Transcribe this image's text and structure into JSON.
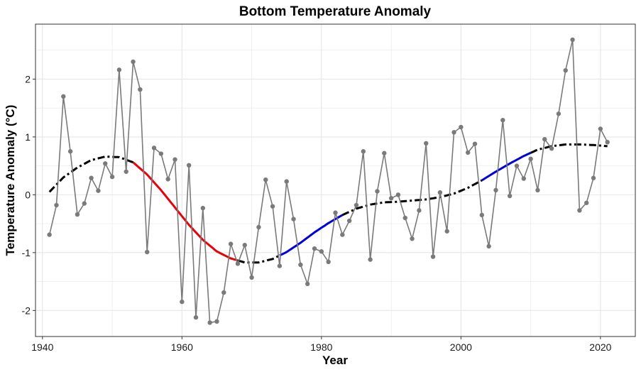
{
  "chart_data": {
    "type": "line",
    "title": "Bottom Temperature Anomaly",
    "xlabel": "Year",
    "ylabel": "Temperature Anomaly (°C)",
    "xlim": [
      1939,
      2025
    ],
    "ylim": [
      -2.45,
      2.95
    ],
    "x_ticks": [
      1940,
      1960,
      1980,
      2000,
      2020
    ],
    "y_ticks": [
      -2,
      -1,
      0,
      1,
      2
    ],
    "x_tick_labels": [
      "1940",
      "1960",
      "1980",
      "2000",
      "2020"
    ],
    "y_tick_labels": [
      "-2",
      "-1",
      "0",
      "1",
      "2"
    ],
    "grid": true,
    "colors": {
      "observed": "#7a7a7a",
      "trend_neutral": "#000000",
      "trend_decreasing": "#e8000b",
      "trend_increasing": "#0000dd",
      "grid": "#e6e6e6",
      "panel_border": "#333333"
    },
    "series": [
      {
        "role": "observed",
        "x": [
          1941,
          1942,
          1943,
          1944,
          1945,
          1946,
          1947,
          1948,
          1949,
          1950,
          1951,
          1952,
          1953,
          1954,
          1955,
          1956,
          1957,
          1958,
          1959,
          1960,
          1961,
          1962,
          1963,
          1964,
          1965,
          1966,
          1967,
          1968,
          1969,
          1970,
          1971,
          1972,
          1973,
          1974,
          1975,
          1976,
          1977,
          1978,
          1979,
          1980,
          1981,
          1982,
          1983,
          1984,
          1985,
          1986,
          1987,
          1988,
          1989,
          1990,
          1991,
          1992,
          1993,
          1994,
          1995,
          1996,
          1997,
          1998,
          1999,
          2000,
          2001,
          2002,
          2003,
          2004,
          2005,
          2006,
          2007,
          2008,
          2009,
          2010,
          2011,
          2012,
          2013,
          2014,
          2015,
          2016,
          2017,
          2018,
          2019,
          2020,
          2021
        ],
        "y": [
          -0.69,
          -0.18,
          1.7,
          0.75,
          -0.34,
          -0.15,
          0.29,
          0.07,
          0.54,
          0.31,
          2.16,
          0.4,
          2.3,
          1.82,
          -0.99,
          0.81,
          0.71,
          0.27,
          0.61,
          -1.85,
          0.51,
          -2.12,
          -0.23,
          -2.21,
          -2.19,
          -1.69,
          -0.85,
          -1.19,
          -0.87,
          -1.43,
          -0.56,
          0.26,
          -0.2,
          -1.23,
          0.23,
          -0.42,
          -1.21,
          -1.54,
          -0.93,
          -0.98,
          -1.16,
          -0.31,
          -0.69,
          -0.45,
          -0.18,
          0.75,
          -1.12,
          0.06,
          0.72,
          -0.06,
          0.0,
          -0.4,
          -0.76,
          -0.27,
          0.89,
          -1.07,
          0.04,
          -0.63,
          1.08,
          1.17,
          0.73,
          0.88,
          -0.35,
          -0.89,
          0.08,
          1.29,
          -0.02,
          0.5,
          0.28,
          0.62,
          0.08,
          0.96,
          0.8,
          1.4,
          2.15,
          2.68,
          -0.27,
          -0.14,
          0.29,
          1.14,
          0.91
        ]
      },
      {
        "role": "trend",
        "x": [
          1941,
          1943,
          1945,
          1947,
          1949,
          1951,
          1953,
          1955,
          1957,
          1959,
          1961,
          1963,
          1965,
          1967,
          1969,
          1971,
          1973,
          1975,
          1977,
          1979,
          1981,
          1983,
          1985,
          1987,
          1989,
          1991,
          1993,
          1995,
          1997,
          1999,
          2001,
          2003,
          2005,
          2007,
          2009,
          2011,
          2013,
          2015,
          2017,
          2019,
          2021
        ],
        "y": [
          0.05,
          0.3,
          0.47,
          0.6,
          0.66,
          0.65,
          0.56,
          0.35,
          0.08,
          -0.22,
          -0.52,
          -0.78,
          -0.98,
          -1.1,
          -1.17,
          -1.17,
          -1.11,
          -0.99,
          -0.83,
          -0.65,
          -0.49,
          -0.35,
          -0.24,
          -0.17,
          -0.13,
          -0.12,
          -0.1,
          -0.08,
          -0.04,
          0.02,
          0.12,
          0.25,
          0.4,
          0.54,
          0.67,
          0.78,
          0.84,
          0.87,
          0.87,
          0.86,
          0.84
        ]
      }
    ],
    "trend_segments": [
      {
        "from": 1941,
        "to": 1953,
        "style": "dashed",
        "colorKey": "trend_neutral"
      },
      {
        "from": 1953,
        "to": 1968,
        "style": "solid",
        "colorKey": "trend_decreasing"
      },
      {
        "from": 1968,
        "to": 1974,
        "style": "dashed",
        "colorKey": "trend_neutral"
      },
      {
        "from": 1974,
        "to": 1983,
        "style": "solid",
        "colorKey": "trend_increasing"
      },
      {
        "from": 1983,
        "to": 2003,
        "style": "dashed",
        "colorKey": "trend_neutral"
      },
      {
        "from": 2003,
        "to": 2010,
        "style": "solid",
        "colorKey": "trend_increasing"
      },
      {
        "from": 2010,
        "to": 2021,
        "style": "dashed",
        "colorKey": "trend_neutral"
      }
    ]
  }
}
